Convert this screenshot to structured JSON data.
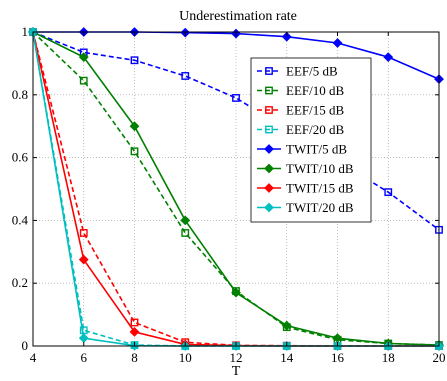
{
  "chart_data": {
    "type": "line",
    "title": "Underestimation rate",
    "xlabel": "T",
    "ylabel": "",
    "xlim": [
      4,
      20
    ],
    "ylim": [
      0,
      1
    ],
    "x": [
      4,
      6,
      8,
      10,
      12,
      14,
      16,
      18,
      20
    ],
    "xticks": [
      "4",
      "6",
      "8",
      "10",
      "12",
      "14",
      "16",
      "18",
      "20"
    ],
    "yticks": [
      "0",
      "0.2",
      "0.4",
      "0.6",
      "0.8",
      "1"
    ],
    "grid": true,
    "legend_position": "inside, upper right",
    "series": [
      {
        "name": "EEF/5 dB",
        "color": "#0000ff",
        "dash": "dashed",
        "marker": "square",
        "values": [
          1.0,
          0.935,
          0.91,
          0.86,
          0.79,
          0.69,
          0.59,
          0.49,
          0.37
        ]
      },
      {
        "name": "EEF/10 dB",
        "color": "#008000",
        "dash": "dashed",
        "marker": "square",
        "values": [
          1.0,
          0.845,
          0.62,
          0.36,
          0.175,
          0.06,
          0.02,
          0.008,
          0.003
        ]
      },
      {
        "name": "EEF/15 dB",
        "color": "#ff0000",
        "dash": "dashed",
        "marker": "square",
        "values": [
          1.0,
          0.36,
          0.075,
          0.012,
          0.002,
          0.001,
          0.0,
          0.0,
          0.0
        ]
      },
      {
        "name": "EEF/20 dB",
        "color": "#00bfbf",
        "dash": "dashed",
        "marker": "square",
        "values": [
          1.0,
          0.05,
          0.003,
          0.0,
          0.0,
          0.0,
          0.0,
          0.0,
          0.0
        ]
      },
      {
        "name": "TWIT/5 dB",
        "color": "#0000ff",
        "dash": "solid",
        "marker": "diamond",
        "values": [
          1.0,
          1.0,
          1.0,
          0.998,
          0.995,
          0.985,
          0.965,
          0.92,
          0.85
        ]
      },
      {
        "name": "TWIT/10 dB",
        "color": "#008000",
        "dash": "solid",
        "marker": "diamond",
        "values": [
          1.0,
          0.92,
          0.7,
          0.4,
          0.17,
          0.065,
          0.025,
          0.008,
          0.003
        ]
      },
      {
        "name": "TWIT/15 dB",
        "color": "#ff0000",
        "dash": "solid",
        "marker": "diamond",
        "values": [
          1.0,
          0.275,
          0.045,
          0.005,
          0.001,
          0.0,
          0.0,
          0.0,
          0.0
        ]
      },
      {
        "name": "TWIT/20 dB",
        "color": "#00bfbf",
        "dash": "solid",
        "marker": "diamond",
        "values": [
          1.0,
          0.025,
          0.001,
          0.0,
          0.0,
          0.0,
          0.0,
          0.0,
          0.0
        ]
      }
    ]
  }
}
